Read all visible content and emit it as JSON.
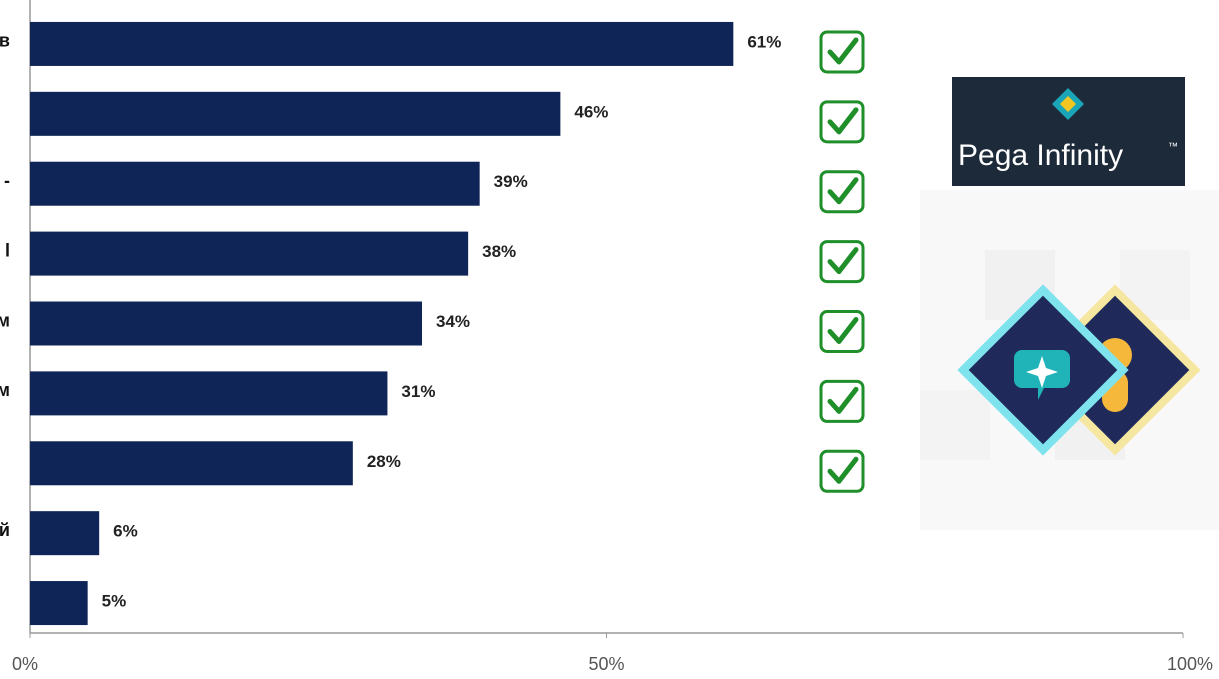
{
  "chart_data": {
    "type": "hbar",
    "categories": [
      "в",
      null,
      "-",
      "l",
      "м",
      "м",
      null,
      "й",
      null
    ],
    "values": [
      61,
      46,
      39,
      38,
      34,
      31,
      28,
      6,
      5
    ],
    "value_labels": [
      "61%",
      "46%",
      "39%",
      "38%",
      "34%",
      "31%",
      "28%",
      "6%",
      "5%"
    ],
    "color": "#0f2557",
    "xlim": [
      0,
      100
    ],
    "xticks": [
      {
        "value": 0,
        "label": "0%"
      },
      {
        "value": 50,
        "label": "50%"
      },
      {
        "value": 100,
        "label": "100%"
      }
    ]
  },
  "logo": {
    "text": "Pega Infinity",
    "trademark": "™"
  }
}
